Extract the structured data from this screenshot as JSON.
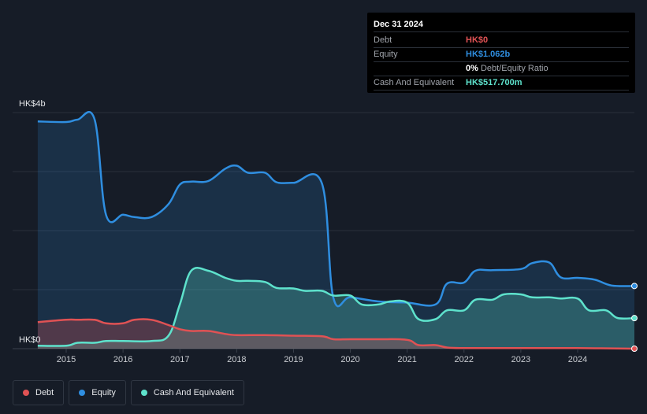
{
  "tooltip": {
    "date": "Dec 31 2024",
    "debt_label": "Debt",
    "debt_value": "HK$0",
    "equity_label": "Equity",
    "equity_value": "HK$1.062b",
    "ratio_value": "0%",
    "ratio_label": "Debt/Equity Ratio",
    "cash_label": "Cash And Equivalent",
    "cash_value": "HK$517.700m"
  },
  "legend": {
    "debt": "Debt",
    "equity": "Equity",
    "cash": "Cash And Equivalent"
  },
  "colors": {
    "debt": "#e05254",
    "equity": "#2f8ee0",
    "cash": "#5ee2cc"
  },
  "chart_data": {
    "type": "area",
    "ylabel_top": "HK$4b",
    "ylabel_bottom": "HK$0",
    "ylim": [
      0,
      4.0
    ],
    "xlim": [
      2014.5,
      2025.0
    ],
    "x_ticks": [
      "2015",
      "2016",
      "2017",
      "2018",
      "2019",
      "2020",
      "2021",
      "2022",
      "2023",
      "2024"
    ],
    "grid": true,
    "series": [
      {
        "name": "Equity",
        "x": [
          2014.5,
          2015.0,
          2015.2,
          2015.5,
          2015.7,
          2016.0,
          2016.2,
          2016.5,
          2016.8,
          2017.0,
          2017.2,
          2017.5,
          2017.8,
          2018.0,
          2018.2,
          2018.5,
          2018.7,
          2019.0,
          2019.5,
          2019.7,
          2020.0,
          2020.5,
          2021.0,
          2021.5,
          2021.7,
          2022.0,
          2022.2,
          2022.5,
          2023.0,
          2023.2,
          2023.5,
          2023.7,
          2024.0,
          2024.3,
          2024.6,
          2025.0
        ],
        "values": [
          3.85,
          3.84,
          3.88,
          3.88,
          2.27,
          2.27,
          2.23,
          2.23,
          2.45,
          2.78,
          2.83,
          2.84,
          3.05,
          3.1,
          2.98,
          2.98,
          2.82,
          2.81,
          2.8,
          0.87,
          0.87,
          0.8,
          0.78,
          0.75,
          1.1,
          1.12,
          1.32,
          1.33,
          1.35,
          1.45,
          1.46,
          1.21,
          1.2,
          1.17,
          1.07,
          1.062
        ]
      },
      {
        "name": "Cash And Equivalent",
        "x": [
          2014.5,
          2015.0,
          2015.2,
          2015.5,
          2015.7,
          2016.0,
          2016.5,
          2016.8,
          2017.0,
          2017.2,
          2017.5,
          2017.8,
          2018.0,
          2018.2,
          2018.5,
          2018.7,
          2019.0,
          2019.2,
          2019.5,
          2019.7,
          2020.0,
          2020.2,
          2020.5,
          2020.7,
          2021.0,
          2021.2,
          2021.5,
          2021.7,
          2022.0,
          2022.2,
          2022.5,
          2022.7,
          2023.0,
          2023.2,
          2023.5,
          2023.7,
          2024.0,
          2024.2,
          2024.5,
          2024.7,
          2025.0
        ],
        "values": [
          0.05,
          0.05,
          0.1,
          0.1,
          0.13,
          0.13,
          0.13,
          0.22,
          0.75,
          1.32,
          1.32,
          1.2,
          1.15,
          1.15,
          1.13,
          1.03,
          1.02,
          0.98,
          0.98,
          0.9,
          0.9,
          0.75,
          0.75,
          0.8,
          0.78,
          0.5,
          0.5,
          0.65,
          0.65,
          0.83,
          0.83,
          0.92,
          0.92,
          0.87,
          0.87,
          0.85,
          0.85,
          0.65,
          0.65,
          0.52,
          0.5177
        ]
      },
      {
        "name": "Debt",
        "x": [
          2014.5,
          2015.0,
          2015.2,
          2015.5,
          2015.7,
          2016.0,
          2016.2,
          2016.5,
          2016.8,
          2017.0,
          2017.2,
          2017.5,
          2017.8,
          2018.0,
          2018.5,
          2019.0,
          2019.5,
          2019.7,
          2020.0,
          2020.5,
          2021.0,
          2021.2,
          2021.5,
          2021.7,
          2022.0,
          2023.0,
          2024.0,
          2025.0
        ],
        "values": [
          0.45,
          0.49,
          0.49,
          0.49,
          0.43,
          0.43,
          0.49,
          0.49,
          0.4,
          0.33,
          0.3,
          0.3,
          0.25,
          0.23,
          0.23,
          0.22,
          0.21,
          0.16,
          0.16,
          0.16,
          0.15,
          0.06,
          0.06,
          0.02,
          0.01,
          0.01,
          0.01,
          0.0
        ]
      }
    ]
  }
}
